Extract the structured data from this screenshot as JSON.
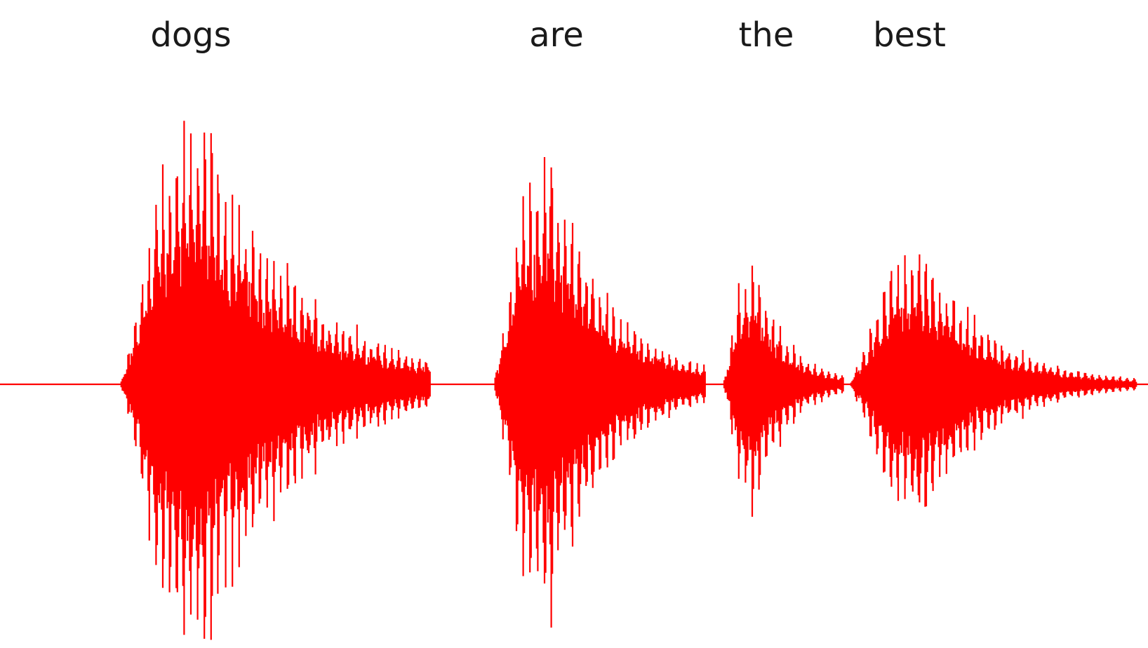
{
  "chart_data": {
    "type": "line",
    "title": "",
    "xlabel": "",
    "ylabel": "",
    "grid": false,
    "axes_visible": false,
    "line_color": "#ff0000",
    "words": [
      "dogs",
      "are",
      "the",
      "best"
    ],
    "segments": [
      {
        "word": "dogs",
        "start": 0.105,
        "end": 0.375,
        "peak_amplitude": 1.0,
        "decay": 3.2
      },
      {
        "word": "are",
        "start": 0.43,
        "end": 0.615,
        "peak_amplitude": 0.86,
        "decay": 3.4
      },
      {
        "word": "the",
        "start": 0.63,
        "end": 0.735,
        "peak_amplitude": 0.46,
        "decay": 3.6
      },
      {
        "word": "best",
        "start": 0.74,
        "end": 0.99,
        "peak_amplitude": 0.5,
        "decay": 4.2
      }
    ],
    "ylim": [
      -1,
      1
    ],
    "xlim": [
      0,
      1
    ]
  }
}
